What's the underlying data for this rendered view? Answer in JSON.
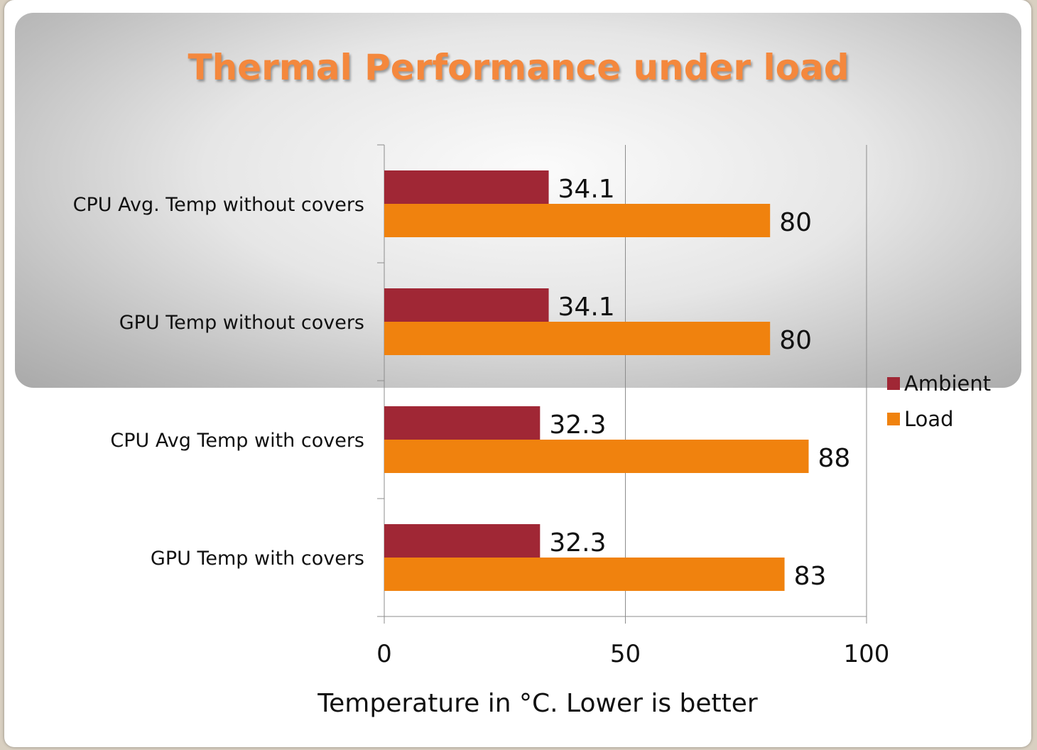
{
  "chart_data": {
    "type": "bar",
    "orientation": "horizontal",
    "title": "Thermal Performance under load",
    "xlabel": "Temperature in °C. Lower is better",
    "ylabel": "",
    "categories": [
      "CPU Avg. Temp without covers",
      "GPU Temp without covers",
      "CPU Avg Temp with covers",
      "GPU Temp with covers"
    ],
    "series": [
      {
        "name": "Ambient",
        "color": "#a02735",
        "values": [
          34.1,
          34.1,
          32.3,
          32.3
        ]
      },
      {
        "name": "Load",
        "color": "#f0820e",
        "values": [
          80,
          80,
          88,
          83
        ]
      }
    ],
    "xlim": [
      0,
      100
    ],
    "xticks": [
      0,
      50,
      100
    ],
    "grid": true,
    "legend": "right"
  }
}
